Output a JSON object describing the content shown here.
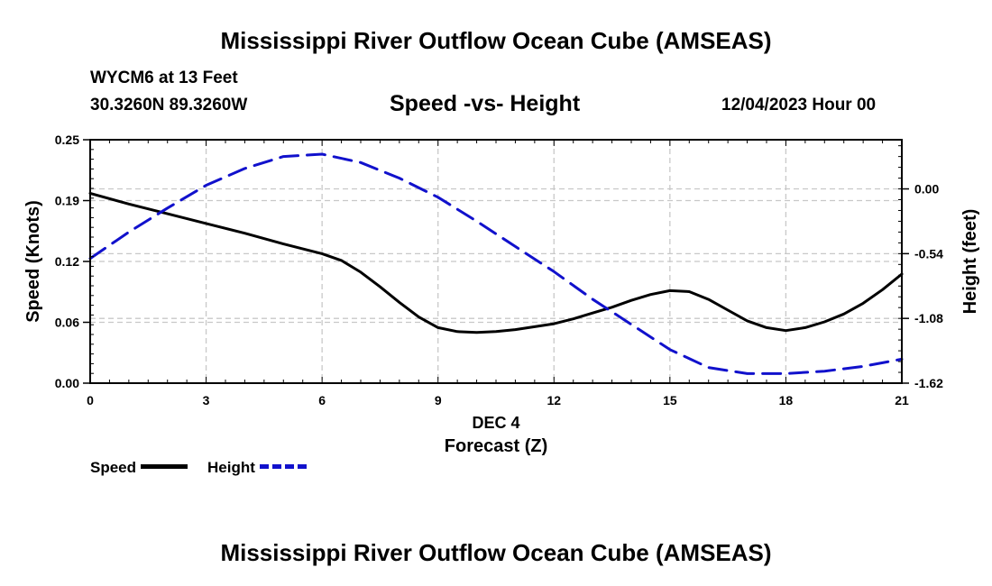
{
  "header": {
    "title": "Mississippi River Outflow Ocean Cube (AMSEAS)",
    "station": "WYCM6 at 13 Feet",
    "coords": "30.3260N  89.3260W",
    "subtitle": "Speed -vs- Height",
    "datetime": "12/04/2023 Hour 00"
  },
  "footer": {
    "title": "Mississippi River Outflow Ocean Cube (AMSEAS)"
  },
  "legend": {
    "speed_label": "Speed",
    "height_label": "Height"
  },
  "colors": {
    "speed": "#000000",
    "height": "#1111cc",
    "grid": "#c8c8c8"
  },
  "chart_data": {
    "type": "line",
    "title": "Speed -vs- Height",
    "xlabel": "Forecast (Z)",
    "xlabel_date": "DEC 4",
    "ylabel": "Speed (Knots)",
    "y2label": "Height (feet)",
    "xlim": [
      0,
      21
    ],
    "ylim": [
      0,
      0.25
    ],
    "y2lim": [
      -1.62,
      0.41
    ],
    "x_ticks": [
      "0",
      "3",
      "6",
      "9",
      "12",
      "15",
      "18",
      "21"
    ],
    "y_ticks": [
      "0.00",
      "0.06",
      "0.12",
      "0.19",
      "0.25"
    ],
    "y_tick_values": [
      0,
      0.0625,
      0.125,
      0.1875,
      0.25
    ],
    "y2_ticks": [
      "0.00",
      "-0.54",
      "-1.08",
      "-1.62"
    ],
    "y2_tick_values": [
      0,
      -0.54,
      -1.08,
      -1.62
    ],
    "grid": true,
    "series": [
      {
        "name": "Speed",
        "axis": "left",
        "style": "solid",
        "x": [
          0,
          1,
          2,
          3,
          4,
          5,
          6,
          6.5,
          7,
          7.5,
          8,
          8.5,
          9,
          9.5,
          10,
          10.5,
          11,
          11.5,
          12,
          12.5,
          13,
          13.5,
          14,
          14.5,
          15,
          15.5,
          16,
          16.5,
          17,
          17.5,
          18,
          18.5,
          19,
          19.5,
          20,
          20.5,
          21
        ],
        "values": [
          0.195,
          0.184,
          0.174,
          0.164,
          0.154,
          0.143,
          0.133,
          0.126,
          0.114,
          0.099,
          0.083,
          0.068,
          0.057,
          0.053,
          0.052,
          0.053,
          0.055,
          0.058,
          0.061,
          0.066,
          0.072,
          0.078,
          0.085,
          0.091,
          0.095,
          0.094,
          0.086,
          0.075,
          0.064,
          0.057,
          0.054,
          0.057,
          0.063,
          0.071,
          0.082,
          0.096,
          0.112
        ]
      },
      {
        "name": "Height",
        "axis": "right",
        "style": "dashed",
        "x": [
          0,
          1,
          2,
          3,
          4,
          5,
          6,
          7,
          8,
          9,
          10,
          11,
          12,
          13,
          14,
          15,
          16,
          17,
          18,
          19,
          20,
          21
        ],
        "values": [
          -0.58,
          -0.36,
          -0.16,
          0.03,
          0.17,
          0.27,
          0.29,
          0.22,
          0.09,
          -0.07,
          -0.27,
          -0.48,
          -0.69,
          -0.92,
          -1.13,
          -1.34,
          -1.49,
          -1.54,
          -1.54,
          -1.52,
          -1.48,
          -1.42
        ]
      }
    ]
  }
}
